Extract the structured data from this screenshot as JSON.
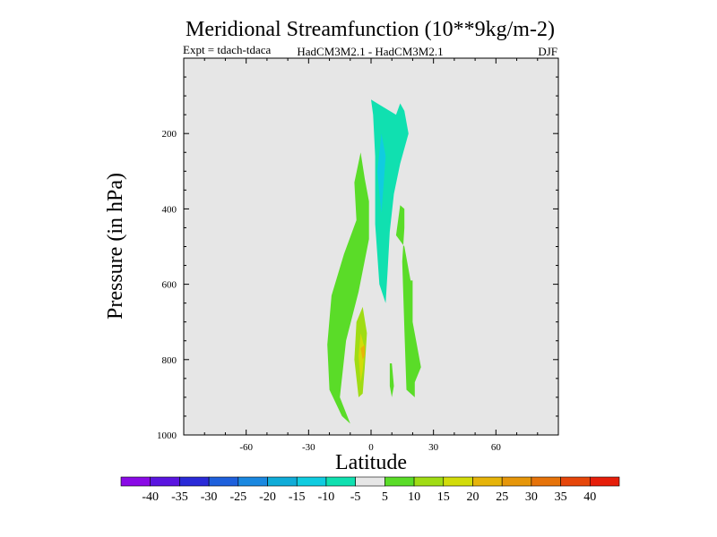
{
  "chart_data": {
    "type": "contour",
    "title": "Meridional Streamfunction (10**9kg/m-2)",
    "subtitle_left": "Expt = tdach-tdaca",
    "subtitle_center": "HadCM3M2.1 - HadCM3M2.1",
    "subtitle_right": "DJF",
    "xlabel": "Latitude",
    "ylabel": "Pressure (in hPa)",
    "xlim": [
      -90,
      90
    ],
    "ylim": [
      1000,
      0
    ],
    "x_ticks": [
      -60,
      -30,
      0,
      30,
      60
    ],
    "x_tick_labels": [
      "-60",
      "-30",
      "0",
      "30",
      "60"
    ],
    "y_ticks": [
      200,
      400,
      600,
      800,
      1000
    ],
    "y_tick_labels": [
      "200",
      "400",
      "600",
      "800",
      "1000"
    ],
    "plot_background": "#e6e6e6",
    "colorbar": {
      "labels": [
        "-40",
        "-35",
        "-30",
        "-25",
        "-20",
        "-15",
        "-10",
        "-5",
        "5",
        "10",
        "15",
        "20",
        "25",
        "30",
        "35",
        "40"
      ],
      "colors": [
        "#8a0ae6",
        "#5a14e0",
        "#2a2ad8",
        "#1e60dc",
        "#1a88e0",
        "#10acd8",
        "#10cce0",
        "#10e0b0",
        "#e6e6e6",
        "#5adc28",
        "#a0dc14",
        "#d2dc0a",
        "#e6b40a",
        "#e6960a",
        "#e6730a",
        "#e6460a",
        "#e61e0a"
      ]
    },
    "regions": [
      {
        "level": "5 to 10",
        "color": "#5adc28",
        "points": [
          [
            -10,
            970
          ],
          [
            -15,
            900
          ],
          [
            -12,
            750
          ],
          [
            -6,
            620
          ],
          [
            -1,
            480
          ],
          [
            -1,
            380
          ],
          [
            -3,
            320
          ],
          [
            -5,
            250
          ],
          [
            -8,
            330
          ],
          [
            -7,
            430
          ],
          [
            -13,
            520
          ],
          [
            -19,
            630
          ],
          [
            -21,
            760
          ],
          [
            -20,
            880
          ],
          [
            -14,
            950
          ]
        ]
      },
      {
        "level": "5 to 10",
        "color": "#5adc28",
        "points": [
          [
            14,
            390
          ],
          [
            12,
            470
          ],
          [
            16,
            500
          ],
          [
            19,
            590
          ],
          [
            20,
            590
          ],
          [
            20,
            700
          ],
          [
            23,
            790
          ],
          [
            24,
            820
          ],
          [
            21,
            860
          ],
          [
            21,
            900
          ],
          [
            17,
            880
          ],
          [
            16,
            720
          ],
          [
            15,
            540
          ],
          [
            16,
            450
          ],
          [
            16,
            400
          ]
        ]
      },
      {
        "level": "5 to 10",
        "color": "#5adc28",
        "points": [
          [
            10,
            810
          ],
          [
            11,
            870
          ],
          [
            10,
            900
          ],
          [
            9,
            870
          ],
          [
            9,
            810
          ]
        ]
      },
      {
        "level": "-10 to -5",
        "color": "#10e0b0",
        "points": [
          [
            0,
            110
          ],
          [
            6,
            130
          ],
          [
            12,
            150
          ],
          [
            14,
            120
          ],
          [
            16,
            140
          ],
          [
            18,
            200
          ],
          [
            14,
            280
          ],
          [
            11,
            360
          ],
          [
            9,
            460
          ],
          [
            8,
            560
          ],
          [
            7,
            650
          ],
          [
            4,
            600
          ],
          [
            2,
            440
          ],
          [
            2,
            260
          ],
          [
            1,
            150
          ]
        ]
      },
      {
        "level": "-15 to -10",
        "color": "#10cce0",
        "points": [
          [
            5,
            200
          ],
          [
            7,
            260
          ],
          [
            6,
            340
          ],
          [
            5,
            410
          ],
          [
            4,
            360
          ],
          [
            3,
            300
          ]
        ]
      },
      {
        "level": "10 to 15",
        "color": "#a0dc14",
        "points": [
          [
            -6,
            900
          ],
          [
            -8,
            800
          ],
          [
            -7,
            700
          ],
          [
            -4,
            660
          ],
          [
            -2,
            730
          ],
          [
            -3,
            820
          ],
          [
            -4,
            890
          ]
        ]
      },
      {
        "level": "15 to 20",
        "color": "#d2dc0a",
        "points": [
          [
            -5,
            860
          ],
          [
            -6,
            790
          ],
          [
            -5,
            730
          ],
          [
            -3,
            770
          ],
          [
            -4,
            830
          ]
        ]
      },
      {
        "level": "20 to 25",
        "color": "#e6b40a",
        "points": [
          [
            -4,
            800
          ],
          [
            -5,
            770
          ],
          [
            -3,
            760
          ],
          [
            -3,
            790
          ]
        ]
      }
    ]
  }
}
